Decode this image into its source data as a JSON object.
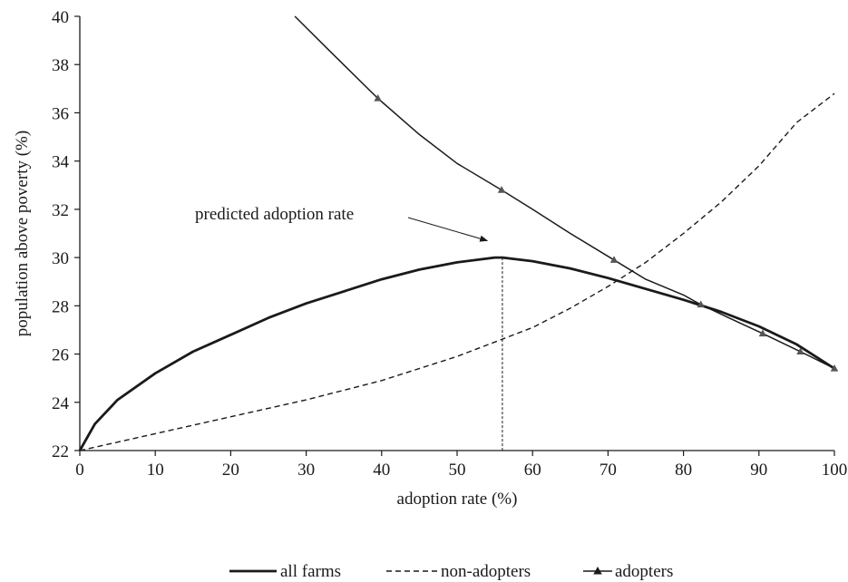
{
  "chart_data": {
    "type": "line",
    "xlabel": "adoption rate (%)",
    "ylabel": "population above poverty (%)",
    "xlim": [
      0,
      100
    ],
    "ylim": [
      22,
      40
    ],
    "x_ticks": [
      0,
      10,
      20,
      30,
      40,
      50,
      60,
      70,
      80,
      90,
      100
    ],
    "y_ticks": [
      22,
      24,
      26,
      28,
      30,
      32,
      34,
      36,
      38,
      40
    ],
    "grid": false,
    "legend_position": "bottom",
    "series": [
      {
        "name": "all farms",
        "style": "solid-thick",
        "color": "#1a1a1a",
        "x": [
          0,
          2,
          5,
          10,
          15,
          20,
          25,
          30,
          35,
          40,
          45,
          50,
          55,
          56,
          60,
          65,
          70,
          75,
          80,
          85,
          90,
          95,
          100
        ],
        "y": [
          22.0,
          23.1,
          24.1,
          25.2,
          26.1,
          26.8,
          27.5,
          28.1,
          28.6,
          29.1,
          29.5,
          29.8,
          30.0,
          30.0,
          29.85,
          29.55,
          29.15,
          28.7,
          28.25,
          27.75,
          27.15,
          26.4,
          25.4
        ]
      },
      {
        "name": "non-adopters",
        "style": "dashed",
        "color": "#1a1a1a",
        "x": [
          0,
          10,
          20,
          30,
          40,
          50,
          55,
          60,
          65,
          70,
          75,
          80,
          85,
          90,
          95,
          100
        ],
        "y": [
          22.0,
          22.7,
          23.4,
          24.1,
          24.9,
          25.9,
          26.5,
          27.1,
          27.9,
          28.8,
          29.8,
          31.0,
          32.3,
          33.8,
          35.6,
          36.8
        ]
      },
      {
        "name": "adopters",
        "style": "solid-thin-triangles",
        "color": "#1a1a1a",
        "x": [
          28.5,
          33,
          39.5,
          45,
          50,
          55.9,
          60,
          65,
          70.8,
          75,
          80,
          82.3,
          86,
          90.5,
          95.5,
          100
        ],
        "y": [
          40.0,
          38.6,
          36.6,
          35.1,
          33.9,
          32.8,
          32.0,
          31.0,
          29.9,
          29.1,
          28.45,
          28.05,
          27.5,
          26.85,
          26.1,
          25.4
        ],
        "markers_x": [
          39.5,
          55.9,
          70.8,
          82.3,
          90.5,
          95.5,
          100
        ],
        "markers_y": [
          36.6,
          32.8,
          29.9,
          28.05,
          26.85,
          26.1,
          25.4
        ]
      }
    ],
    "annotations": [
      {
        "text": "predicted adoption rate",
        "arrow_to_x": 54,
        "arrow_to_y": 30.7,
        "vline_x": 56,
        "vline_top_y": 30.0
      }
    ]
  }
}
